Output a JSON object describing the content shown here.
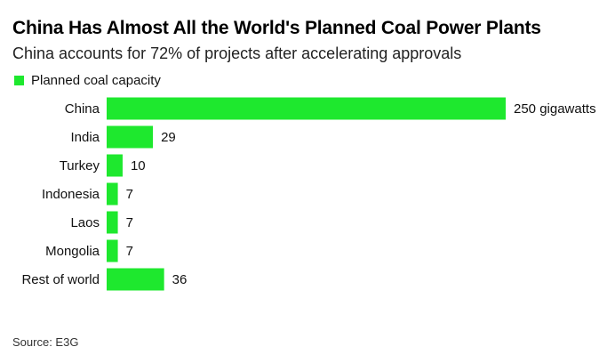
{
  "title": "China Has Almost All the World's Planned Coal Power Plants",
  "subtitle": "China accounts for 72% of projects after accelerating approvals",
  "source": "Source: E3G",
  "colors": {
    "bar": "#1ee82e"
  },
  "chart_data": {
    "type": "bar",
    "orientation": "horizontal",
    "categories": [
      "China",
      "India",
      "Turkey",
      "Indonesia",
      "Laos",
      "Mongolia",
      "Rest of world"
    ],
    "series": [
      {
        "name": "Planned coal capacity",
        "values": [
          250,
          29,
          10,
          7,
          7,
          7,
          36
        ]
      }
    ],
    "value_labels": [
      "250 gigawatts",
      "29",
      "10",
      "7",
      "7",
      "7",
      "36"
    ],
    "unit": "gigawatts",
    "xlim": [
      0,
      250
    ],
    "grid": false,
    "legend_position": "top-left"
  }
}
